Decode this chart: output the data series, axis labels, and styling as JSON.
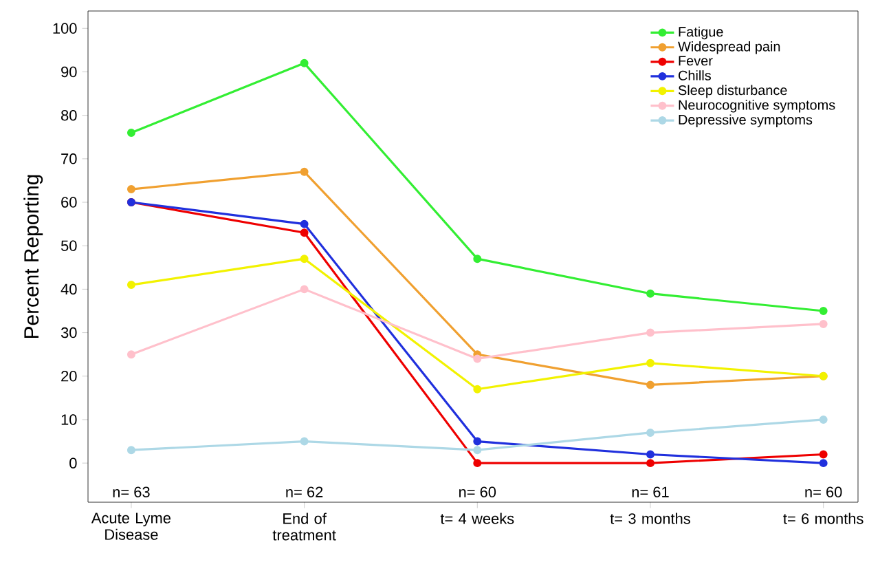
{
  "chart_data": {
    "type": "line",
    "ylabel": "Percent Reporting",
    "categories": [
      "Acute Lyme Disease",
      "End of treatment",
      "t= 4 weeks",
      "t= 3 months",
      "t= 6 months"
    ],
    "series": [
      {
        "name": "Fatigue",
        "color": "#33ee33",
        "values": [
          76,
          92,
          47,
          39,
          35
        ]
      },
      {
        "name": "Widespread pain",
        "color": "#f0a030",
        "values": [
          63,
          67,
          25,
          18,
          20
        ]
      },
      {
        "name": "Fever",
        "color": "#ee0000",
        "values": [
          60,
          53,
          0,
          0,
          2
        ]
      },
      {
        "name": "Chills",
        "color": "#2030dd",
        "values": [
          60,
          55,
          5,
          2,
          0
        ]
      },
      {
        "name": "Sleep disturbance",
        "color": "#f2f200",
        "values": [
          41,
          47,
          17,
          23,
          20
        ]
      },
      {
        "name": "Neurocognitive symptoms",
        "color": "#ffc0cb",
        "values": [
          25,
          40,
          24,
          30,
          32
        ]
      },
      {
        "name": "Depressive symptoms",
        "color": "#add8e6",
        "values": [
          3,
          5,
          3,
          7,
          10
        ]
      }
    ],
    "ylim": [
      -9,
      104
    ],
    "yticks": [
      0,
      10,
      20,
      30,
      40,
      50,
      60,
      70,
      80,
      90,
      100
    ],
    "annotations": [
      "n= 63",
      "n= 62",
      "n= 60",
      "n= 61",
      "n= 60"
    ],
    "legend": "top right",
    "marker": "circle",
    "line_style": "solid",
    "grid": false
  }
}
